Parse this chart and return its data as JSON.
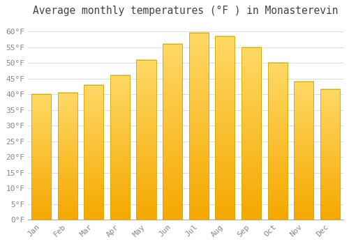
{
  "title": "Average monthly temperatures (°F ) in Monasterevin",
  "months": [
    "Jan",
    "Feb",
    "Mar",
    "Apr",
    "May",
    "Jun",
    "Jul",
    "Aug",
    "Sep",
    "Oct",
    "Nov",
    "Dec"
  ],
  "values": [
    40,
    40.5,
    43,
    46,
    51,
    56,
    59.5,
    58.5,
    55,
    50,
    44,
    41.5
  ],
  "bar_color_bottom": "#F5A800",
  "bar_color_top": "#FFD966",
  "bar_edge_color": "#CCAA00",
  "background_color": "#FFFFFF",
  "grid_color": "#DDDDDD",
  "ylim": [
    0,
    63
  ],
  "yticks": [
    0,
    5,
    10,
    15,
    20,
    25,
    30,
    35,
    40,
    45,
    50,
    55,
    60
  ],
  "ytick_labels": [
    "0°F",
    "5°F",
    "10°F",
    "15°F",
    "20°F",
    "25°F",
    "30°F",
    "35°F",
    "40°F",
    "45°F",
    "50°F",
    "55°F",
    "60°F"
  ],
  "title_fontsize": 10.5,
  "tick_fontsize": 8,
  "tick_color": "#888888",
  "spine_color": "#AAAAAA",
  "bar_width": 0.75
}
